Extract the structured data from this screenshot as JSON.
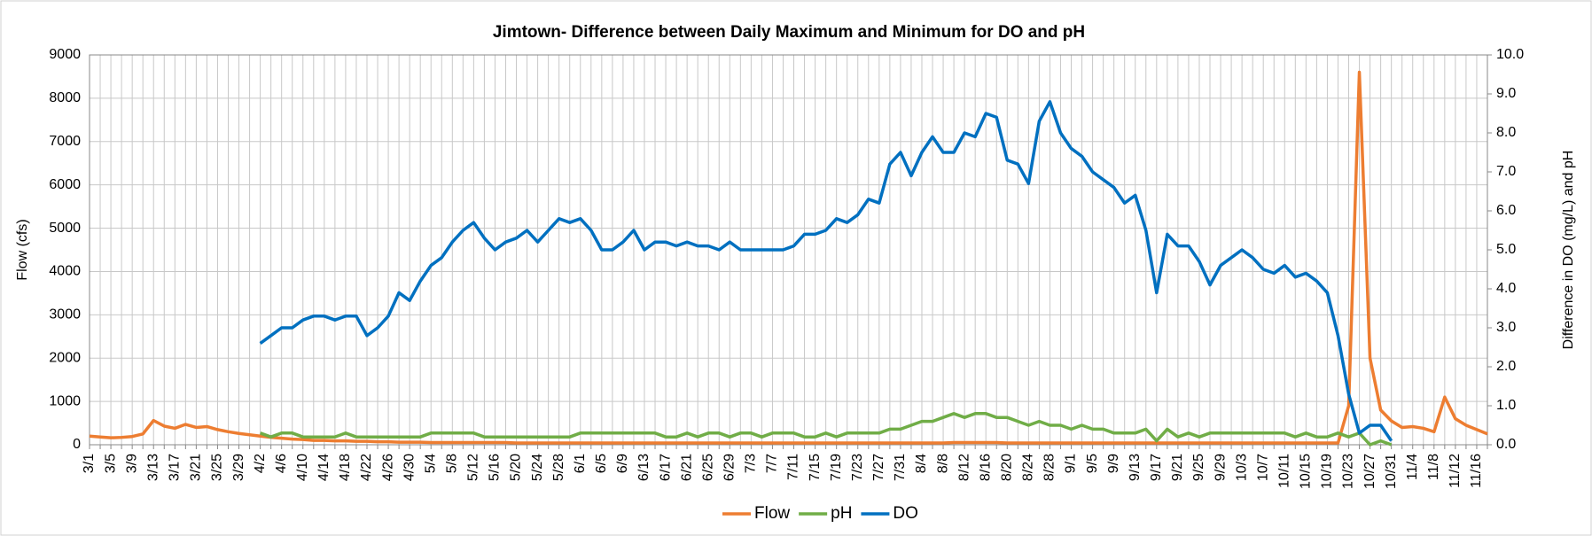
{
  "chart_data": {
    "type": "line",
    "title": "Jimtown- Difference between Daily Maximum and Minimum for DO and pH",
    "y_label": "Flow (cfs)",
    "y2_label": "Difference in DO (mg/L) and pH",
    "categories": [
      "3/1",
      null,
      "3/5",
      null,
      "3/9",
      null,
      "3/13",
      null,
      "3/17",
      null,
      "3/21",
      null,
      "3/25",
      null,
      "3/29",
      null,
      "4/2",
      null,
      "4/6",
      null,
      "4/10",
      null,
      "4/14",
      null,
      "4/18",
      null,
      "4/22",
      null,
      "4/26",
      null,
      "4/30",
      null,
      "5/4",
      null,
      "5/8",
      null,
      "5/12",
      null,
      "5/16",
      null,
      "5/20",
      null,
      "5/24",
      null,
      "5/28",
      null,
      "6/1",
      null,
      "6/5",
      null,
      "6/9",
      null,
      "6/13",
      null,
      "6/17",
      null,
      "6/21",
      null,
      "6/25",
      null,
      "6/29",
      null,
      "7/3",
      null,
      "7/7",
      null,
      "7/11",
      null,
      "7/15",
      null,
      "7/19",
      null,
      "7/23",
      null,
      "7/27",
      null,
      "7/31",
      null,
      "8/4",
      null,
      "8/8",
      null,
      "8/12",
      null,
      "8/16",
      null,
      "8/20",
      null,
      "8/24",
      null,
      "8/28",
      null,
      "9/1",
      null,
      "9/5",
      null,
      "9/9",
      null,
      "9/13",
      null,
      "9/17",
      null,
      "9/21",
      null,
      "9/25",
      null,
      "9/29",
      null,
      "10/3",
      null,
      "10/7",
      null,
      "10/11",
      null,
      "10/15",
      null,
      "10/19",
      null,
      "10/23",
      null,
      "10/27",
      null,
      "10/31",
      null,
      "11/4",
      null,
      "11/8",
      null,
      "11/12",
      null,
      "11/16",
      null
    ],
    "series": [
      {
        "name": "Flow",
        "color": "#ed7d31",
        "axis": "y",
        "values": [
          200,
          180,
          160,
          170,
          190,
          250,
          560,
          430,
          380,
          470,
          400,
          420,
          350,
          300,
          260,
          230,
          200,
          170,
          150,
          130,
          120,
          100,
          100,
          90,
          90,
          80,
          80,
          70,
          70,
          60,
          60,
          60,
          50,
          50,
          50,
          50,
          50,
          50,
          50,
          50,
          40,
          40,
          40,
          40,
          40,
          40,
          40,
          40,
          40,
          40,
          40,
          40,
          40,
          40,
          40,
          40,
          40,
          40,
          40,
          40,
          40,
          40,
          40,
          40,
          40,
          40,
          40,
          40,
          40,
          40,
          40,
          40,
          40,
          40,
          40,
          40,
          40,
          40,
          40,
          40,
          40,
          50,
          50,
          50,
          50,
          50,
          40,
          40,
          40,
          40,
          40,
          40,
          40,
          40,
          40,
          40,
          40,
          40,
          40,
          40,
          40,
          40,
          40,
          40,
          40,
          40,
          40,
          40,
          40,
          40,
          40,
          40,
          40,
          40,
          40,
          40,
          40,
          40,
          900,
          8600,
          2000,
          800,
          550,
          400,
          420,
          380,
          300,
          1100,
          600,
          450,
          350,
          250
        ]
      },
      {
        "name": "pH",
        "color": "#70ad47",
        "axis": "y2",
        "values": [
          null,
          null,
          null,
          null,
          null,
          null,
          null,
          null,
          null,
          null,
          null,
          null,
          null,
          null,
          null,
          null,
          0.3,
          0.2,
          0.3,
          0.3,
          0.2,
          0.2,
          0.2,
          0.2,
          0.3,
          0.2,
          0.2,
          0.2,
          0.2,
          0.2,
          0.2,
          0.2,
          0.3,
          0.3,
          0.3,
          0.3,
          0.3,
          0.2,
          0.2,
          0.2,
          0.2,
          0.2,
          0.2,
          0.2,
          0.2,
          0.2,
          0.3,
          0.3,
          0.3,
          0.3,
          0.3,
          0.3,
          0.3,
          0.3,
          0.2,
          0.2,
          0.3,
          0.2,
          0.3,
          0.3,
          0.2,
          0.3,
          0.3,
          0.2,
          0.3,
          0.3,
          0.3,
          0.2,
          0.2,
          0.3,
          0.2,
          0.3,
          0.3,
          0.3,
          0.3,
          0.4,
          0.4,
          0.5,
          0.6,
          0.6,
          0.7,
          0.8,
          0.7,
          0.8,
          0.8,
          0.7,
          0.7,
          0.6,
          0.5,
          0.6,
          0.5,
          0.5,
          0.4,
          0.5,
          0.4,
          0.4,
          0.3,
          0.3,
          0.3,
          0.4,
          0.1,
          0.4,
          0.2,
          0.3,
          0.2,
          0.3,
          0.3,
          0.3,
          0.3,
          0.3,
          0.3,
          0.3,
          0.3,
          0.2,
          0.3,
          0.2,
          0.2,
          0.3,
          0.2,
          0.3,
          0.0,
          0.1,
          0.0,
          null,
          null,
          null,
          null,
          null,
          null,
          null,
          null,
          null
        ]
      },
      {
        "name": "DO",
        "color": "#0070c0",
        "axis": "y2",
        "values": [
          null,
          null,
          null,
          null,
          null,
          null,
          null,
          null,
          null,
          null,
          null,
          null,
          null,
          null,
          null,
          null,
          2.6,
          2.8,
          3.0,
          3.0,
          3.2,
          3.3,
          3.3,
          3.2,
          3.3,
          3.3,
          2.8,
          3.0,
          3.3,
          3.9,
          3.7,
          4.2,
          4.6,
          4.8,
          5.2,
          5.5,
          5.7,
          5.3,
          5.0,
          5.2,
          5.3,
          5.5,
          5.2,
          5.5,
          5.8,
          5.7,
          5.8,
          5.5,
          5.0,
          5.0,
          5.2,
          5.5,
          5.0,
          5.2,
          5.2,
          5.1,
          5.2,
          5.1,
          5.1,
          5.0,
          5.2,
          5.0,
          5.0,
          5.0,
          5.0,
          5.0,
          5.1,
          5.4,
          5.4,
          5.5,
          5.8,
          5.7,
          5.9,
          6.3,
          6.2,
          7.2,
          7.5,
          6.9,
          7.5,
          7.9,
          7.5,
          7.5,
          8.0,
          7.9,
          8.5,
          8.4,
          7.3,
          7.2,
          6.7,
          8.3,
          8.8,
          8.0,
          7.6,
          7.4,
          7.0,
          6.8,
          6.6,
          6.2,
          6.4,
          5.5,
          3.9,
          5.4,
          5.1,
          5.1,
          4.7,
          4.1,
          4.6,
          4.8,
          5.0,
          4.8,
          4.5,
          4.4,
          4.6,
          4.3,
          4.4,
          4.2,
          3.9,
          2.8,
          1.3,
          0.3,
          0.5,
          0.5,
          0.1,
          null,
          null,
          null,
          null,
          null,
          null,
          null,
          null,
          null
        ]
      }
    ],
    "ylim": [
      0,
      9000
    ],
    "yticks": [
      0,
      1000,
      2000,
      3000,
      4000,
      5000,
      6000,
      7000,
      8000,
      9000
    ],
    "y2lim": [
      0,
      10
    ],
    "y2ticks": [
      {
        "value": 0,
        "label": "0.0"
      },
      {
        "value": 1,
        "label": "1.0"
      },
      {
        "value": 2,
        "label": "2.0"
      },
      {
        "value": 3,
        "label": "3.0"
      },
      {
        "value": 4,
        "label": "4.0"
      },
      {
        "value": 5,
        "label": "5.0"
      },
      {
        "value": 6,
        "label": "6.0"
      },
      {
        "value": 7,
        "label": "7.0"
      },
      {
        "value": 8,
        "label": "8.0"
      },
      {
        "value": 9,
        "label": "9.0"
      },
      {
        "value": 10,
        "label": "10.0"
      }
    ],
    "grid": true,
    "legend": "bottom"
  }
}
